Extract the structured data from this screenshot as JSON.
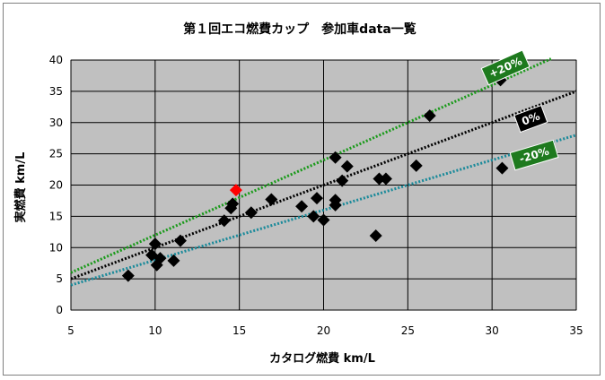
{
  "chart_data": {
    "type": "scatter",
    "title": "第１回エコ燃費カップ　参加車data一覧",
    "xlabel": "カタログ燃費 km/L",
    "ylabel": "実燃費 km/L",
    "xlim": [
      5,
      35
    ],
    "ylim": [
      0,
      40
    ],
    "xticks": [
      5,
      10,
      15,
      20,
      25,
      30,
      35
    ],
    "yticks": [
      0,
      5,
      10,
      15,
      20,
      25,
      30,
      35,
      40
    ],
    "grid": true,
    "plot_background": "#c0c0c0",
    "series": [
      {
        "marker": "diamond",
        "color": "#000000",
        "points": [
          [
            8.4,
            5.5
          ],
          [
            9.8,
            8.8
          ],
          [
            10.0,
            10.6
          ],
          [
            10.1,
            7.2
          ],
          [
            10.3,
            8.3
          ],
          [
            11.1,
            7.9
          ],
          [
            11.5,
            11.1
          ],
          [
            14.1,
            14.3
          ],
          [
            14.5,
            16.3
          ],
          [
            14.6,
            17.0
          ],
          [
            15.7,
            15.6
          ],
          [
            16.9,
            17.7
          ],
          [
            18.7,
            16.6
          ],
          [
            19.4,
            15.0
          ],
          [
            19.6,
            17.9
          ],
          [
            20.0,
            14.4
          ],
          [
            20.7,
            17.6
          ],
          [
            20.7,
            16.8
          ],
          [
            20.7,
            24.4
          ],
          [
            21.1,
            20.7
          ],
          [
            21.4,
            23.0
          ],
          [
            23.1,
            11.9
          ],
          [
            23.3,
            21.0
          ],
          [
            23.7,
            21.0
          ],
          [
            25.5,
            23.1
          ],
          [
            26.3,
            31.1
          ],
          [
            30.5,
            36.8
          ],
          [
            30.6,
            22.7
          ]
        ]
      },
      {
        "marker": "diamond",
        "color": "#ff0000",
        "points": [
          [
            14.8,
            19.2
          ]
        ]
      }
    ],
    "reference_lines": [
      {
        "label": "+20%",
        "slope": 1.2,
        "color": "#1a9a1a",
        "tag_color": "#1e7a1e"
      },
      {
        "label": "0%",
        "slope": 1.0,
        "color": "#000000",
        "tag_color": "#000000"
      },
      {
        "label": "-20%",
        "slope": 0.8,
        "color": "#1a8a9a",
        "tag_color": "#1e7a1e"
      }
    ]
  }
}
